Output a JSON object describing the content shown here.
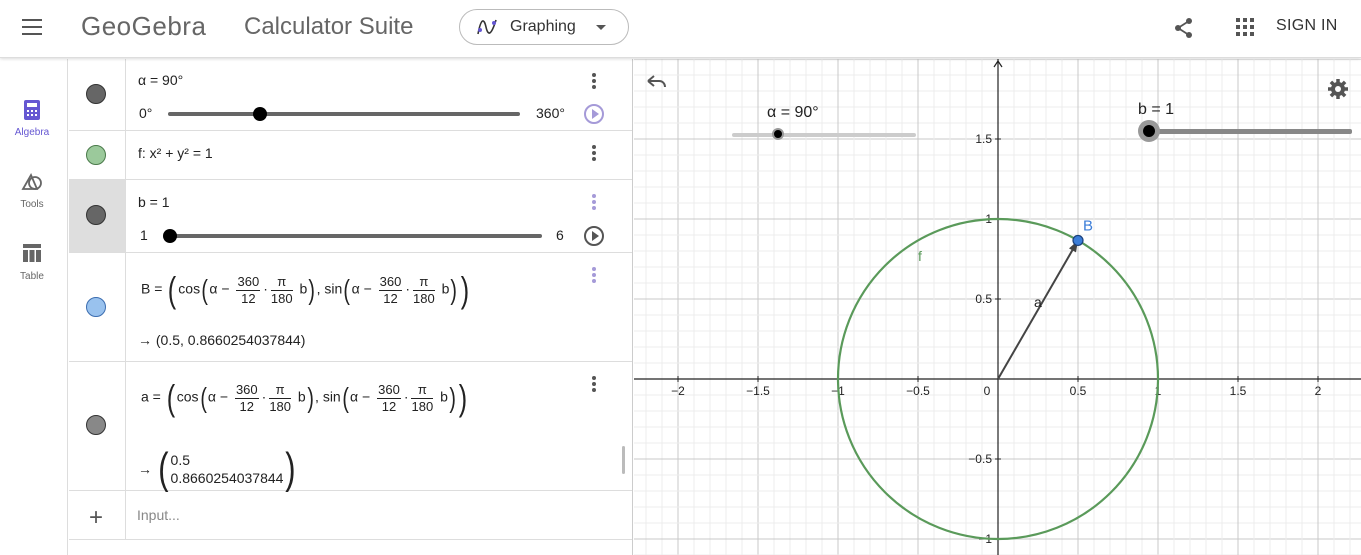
{
  "header": {
    "logo": "GeoGebra",
    "suite_title": "Calculator Suite",
    "app_selector": "Graphing",
    "signin": "SIGN IN"
  },
  "leftnav": {
    "items": [
      {
        "label": "Algebra",
        "icon": "calculator-icon",
        "active": true
      },
      {
        "label": "Tools",
        "icon": "shapes-icon",
        "active": false
      },
      {
        "label": "Table",
        "icon": "table-icon",
        "active": false
      }
    ]
  },
  "algebra": {
    "rows": [
      {
        "expr": "α = 90°",
        "slider_min": "0°",
        "slider_max": "360°",
        "slider_value_fraction": 0.25,
        "marble_color": "#666666"
      },
      {
        "expr": "f: x² + y² = 1",
        "marble_color": "#9bc99b"
      },
      {
        "expr": "b = 1",
        "slider_min": "1",
        "slider_max": "6",
        "slider_value_fraction": 0.0,
        "marble_color": "#666666"
      },
      {
        "lhs": "B =",
        "f1": "cos",
        "f2": "sin",
        "alpha": "α",
        "minus": "−",
        "n360": "360",
        "n12": "12",
        "pi": "π",
        "n180": "180",
        "b": "b",
        "dot": "·",
        "comma": ",",
        "result": "→ (0.5, 0.8660254037844)",
        "marble_color": "#99c2ee"
      },
      {
        "lhs": "a =",
        "result_arrow": "→",
        "result_top": "0.5",
        "result_bottom": "0.8660254037844",
        "marble_color": "#888888"
      }
    ],
    "input_placeholder": "Input..."
  },
  "graphics": {
    "slider_alpha_label": "α = 90°",
    "slider_b_label": "b = 1",
    "x_ticks": [
      "−2",
      "−1.5",
      "−1",
      "−0.5",
      "0",
      "0.5",
      "1",
      "1.5",
      "2"
    ],
    "y_ticks": [
      "1.5",
      "1",
      "0.5",
      "−0.5",
      "−1"
    ],
    "point_label": "B",
    "vector_label": "a",
    "curve_label": "f",
    "colors": {
      "circle": "#5a9a5a",
      "point": "#3b7dd8",
      "vector": "#444444"
    }
  }
}
